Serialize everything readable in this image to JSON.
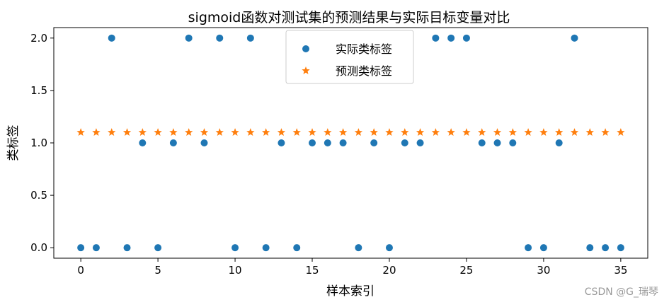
{
  "chart_data": {
    "type": "scatter",
    "title": "sigmoid函数对测试集的预测结果与实际目标变量对比",
    "xlabel": "样本索引",
    "ylabel": "类标签",
    "xlim": [
      -1.75,
      36.75
    ],
    "ylim": [
      -0.1,
      2.1
    ],
    "x_ticks": [
      0,
      5,
      10,
      15,
      20,
      25,
      30,
      35
    ],
    "y_ticks": [
      "0.0",
      "0.5",
      "1.0",
      "1.5",
      "2.0"
    ],
    "grid": false,
    "legend_position": "upper center",
    "series": [
      {
        "name": "实际类标签",
        "marker": "circle",
        "color": "#1f77b4",
        "x": [
          0,
          1,
          2,
          3,
          4,
          5,
          6,
          7,
          8,
          9,
          10,
          11,
          12,
          13,
          14,
          15,
          16,
          17,
          18,
          19,
          20,
          21,
          22,
          23,
          24,
          25,
          26,
          27,
          28,
          29,
          30,
          31,
          32,
          33,
          34,
          35
        ],
        "y": [
          0,
          0,
          2,
          0,
          1,
          0,
          1,
          2,
          1,
          2,
          0,
          2,
          0,
          1,
          0,
          1,
          1,
          1,
          0,
          1,
          0,
          1,
          1,
          2,
          2,
          2,
          1,
          1,
          1,
          0,
          0,
          1,
          2,
          0,
          0,
          0
        ]
      },
      {
        "name": "预测类标签",
        "marker": "star",
        "color": "#ff7f0e",
        "x": [
          0,
          1,
          2,
          3,
          4,
          5,
          6,
          7,
          8,
          9,
          10,
          11,
          12,
          13,
          14,
          15,
          16,
          17,
          18,
          19,
          20,
          21,
          22,
          23,
          24,
          25,
          26,
          27,
          28,
          29,
          30,
          31,
          32,
          33,
          34,
          35
        ],
        "y": [
          1.1,
          1.1,
          1.1,
          1.1,
          1.1,
          1.1,
          1.1,
          1.1,
          1.1,
          1.1,
          1.1,
          1.1,
          1.1,
          1.1,
          1.1,
          1.1,
          1.1,
          1.1,
          1.1,
          1.1,
          1.1,
          1.1,
          1.1,
          1.1,
          1.1,
          1.1,
          1.1,
          1.1,
          1.1,
          1.1,
          1.1,
          1.1,
          1.1,
          1.1,
          1.1,
          1.1
        ]
      }
    ]
  },
  "watermark": "CSDN @G_瑞琴"
}
